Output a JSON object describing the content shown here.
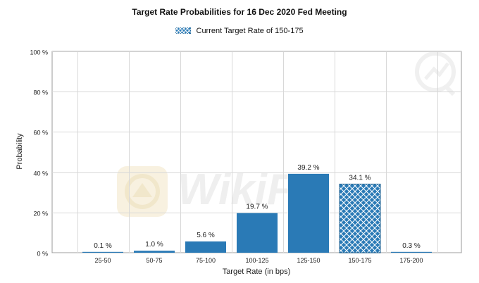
{
  "colors": {
    "bar": "#2a7ab6",
    "hatch_bg": "#2a7ab6",
    "hatch_line": "#ffffff",
    "grid": "#d8d8d8",
    "axis": "#9a9a9a",
    "text": "#222222",
    "watermark": "#e8e8e8"
  },
  "legend": {
    "label": "Current Target Rate of 150-175",
    "icon": "cross-hatch-swatch"
  },
  "watermark": {
    "text": "WikiFX",
    "icon": "wikifx-logo"
  },
  "chart_data": {
    "type": "bar",
    "title": "Target Rate Probabilities for 16 Dec 2020 Fed Meeting",
    "xlabel": "Target Rate (in bps)",
    "ylabel": "Probability",
    "categories": [
      "25-50",
      "50-75",
      "75-100",
      "100-125",
      "125-150",
      "150-175",
      "175-200"
    ],
    "values": [
      0.1,
      1.0,
      5.6,
      19.7,
      39.2,
      34.1,
      0.3
    ],
    "value_labels": [
      "0.1 %",
      "1.0 %",
      "5.6 %",
      "19.7 %",
      "39.2 %",
      "34.1 %",
      "0.3 %"
    ],
    "highlighted": "150-175",
    "ylim": [
      0,
      100
    ],
    "yticks": [
      0,
      20,
      40,
      60,
      80,
      100
    ],
    "ytick_labels": [
      "0 %",
      "20 %",
      "40 %",
      "60 %",
      "80 %",
      "100 %"
    ],
    "grid": true,
    "legend_position": "top-center"
  }
}
